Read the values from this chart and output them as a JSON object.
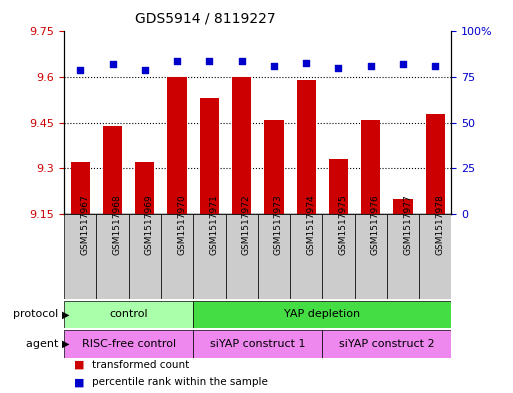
{
  "title": "GDS5914 / 8119227",
  "samples": [
    "GSM1517967",
    "GSM1517968",
    "GSM1517969",
    "GSM1517970",
    "GSM1517971",
    "GSM1517972",
    "GSM1517973",
    "GSM1517974",
    "GSM1517975",
    "GSM1517976",
    "GSM1517977",
    "GSM1517978"
  ],
  "transformed_counts": [
    9.32,
    9.44,
    9.32,
    9.6,
    9.53,
    9.6,
    9.46,
    9.59,
    9.33,
    9.46,
    9.2,
    9.48
  ],
  "percentile_ranks": [
    79,
    82,
    79,
    84,
    84,
    84,
    81,
    83,
    80,
    81,
    82,
    81
  ],
  "y_min": 9.15,
  "y_max": 9.75,
  "y_ticks": [
    9.15,
    9.3,
    9.45,
    9.6,
    9.75
  ],
  "y2_ticks": [
    0,
    25,
    50,
    75,
    100
  ],
  "bar_color": "#cc0000",
  "dot_color": "#0000cc",
  "bar_width": 0.6,
  "protocol_groups": [
    {
      "label": "control",
      "start": 0,
      "end": 4,
      "color": "#aaffaa"
    },
    {
      "label": "YAP depletion",
      "start": 4,
      "end": 12,
      "color": "#44dd44"
    }
  ],
  "agent_groups": [
    {
      "label": "RISC-free control",
      "start": 0,
      "end": 4,
      "color": "#ee88ee"
    },
    {
      "label": "siYAP construct 1",
      "start": 4,
      "end": 8,
      "color": "#ee88ee"
    },
    {
      "label": "siYAP construct 2",
      "start": 8,
      "end": 12,
      "color": "#ee88ee"
    }
  ],
  "legend_items": [
    {
      "label": "transformed count",
      "color": "#cc0000"
    },
    {
      "label": "percentile rank within the sample",
      "color": "#0000cc"
    }
  ],
  "xlabel_protocol": "protocol",
  "xlabel_agent": "agent",
  "tick_color_left": "#cc0000",
  "tick_color_right": "#0000cc",
  "bg_color_plot": "#ffffff",
  "sample_bg_color": "#cccccc"
}
